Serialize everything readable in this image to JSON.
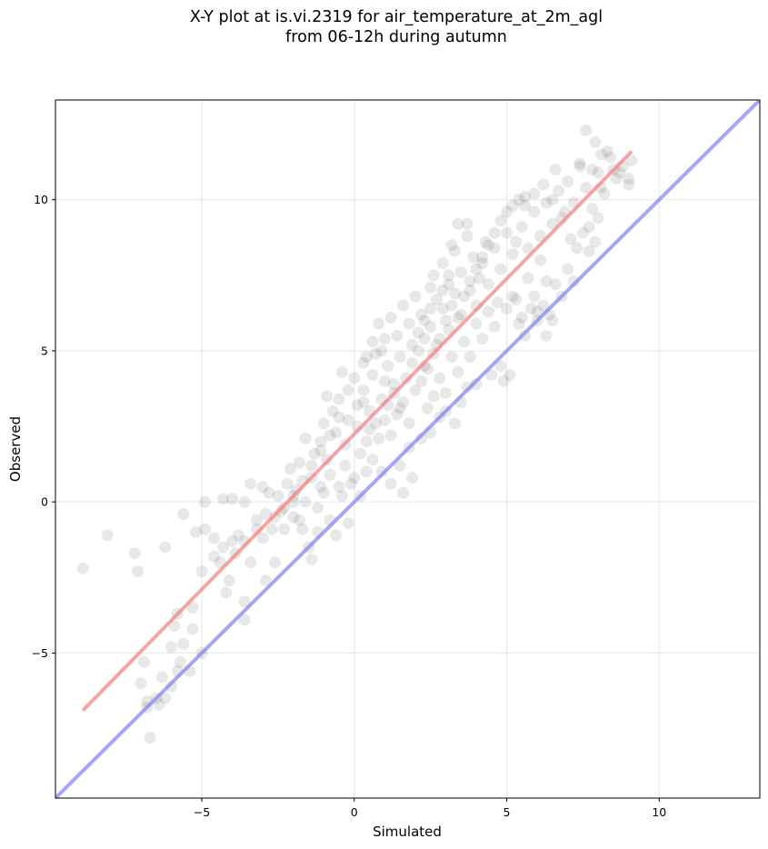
{
  "chart_data": {
    "type": "scatter",
    "title_line1": "X-Y plot at is.vi.2319 for air_temperature_at_2m_agl",
    "title_line2": "from 06-12h during autumn",
    "xlabel": "Simulated",
    "ylabel": "Observed",
    "xlim": [
      -9.8,
      13.3
    ],
    "ylim": [
      -9.8,
      13.3
    ],
    "xticks": [
      -5,
      0,
      5,
      10
    ],
    "yticks": [
      -5,
      0,
      5,
      10
    ],
    "xtick_labels": [
      "−5",
      "0",
      "5",
      "10"
    ],
    "ytick_labels": [
      "−5",
      "0",
      "5",
      "10"
    ],
    "grid": true,
    "point_color": "#000000",
    "point_opacity": 0.09,
    "fit_line": {
      "color": "#f08080",
      "x": [
        -8.9,
        9.1
      ],
      "y": [
        -6.9,
        11.6
      ]
    },
    "identity_line": {
      "color": "#8080f0",
      "x": [
        -9.8,
        13.3
      ],
      "y": [
        -9.8,
        13.3
      ]
    },
    "points": [
      [
        -8.9,
        -2.2
      ],
      [
        -8.1,
        -1.1
      ],
      [
        -7.2,
        -1.7
      ],
      [
        -7.1,
        -2.3
      ],
      [
        -6.2,
        -1.5
      ],
      [
        -5.6,
        -0.4
      ],
      [
        -5.2,
        -1.0
      ],
      [
        -4.9,
        0.0
      ],
      [
        -4.9,
        -0.9
      ],
      [
        -4.3,
        0.1
      ],
      [
        -4.0,
        0.1
      ],
      [
        -3.6,
        0.0
      ],
      [
        -3.6,
        -1.3
      ],
      [
        -3.4,
        0.6
      ],
      [
        -3.0,
        0.5
      ],
      [
        -2.8,
        0.3
      ],
      [
        -3.9,
        -1.7
      ],
      [
        -4.2,
        -3.0
      ],
      [
        -3.6,
        -3.3
      ],
      [
        -3.6,
        -3.9
      ],
      [
        -4.1,
        -2.6
      ],
      [
        -3.4,
        -2.0
      ],
      [
        -2.9,
        -2.6
      ],
      [
        -2.6,
        -2.0
      ],
      [
        -5.0,
        -2.3
      ],
      [
        -5.3,
        -3.5
      ],
      [
        -5.3,
        -4.2
      ],
      [
        -5.0,
        -5.0
      ],
      [
        -5.8,
        -3.7
      ],
      [
        -5.9,
        -4.1
      ],
      [
        -5.6,
        -4.7
      ],
      [
        -6.0,
        -4.8
      ],
      [
        -5.7,
        -5.3
      ],
      [
        -5.8,
        -5.6
      ],
      [
        -5.4,
        -5.6
      ],
      [
        -6.3,
        -5.8
      ],
      [
        -6.0,
        -6.1
      ],
      [
        -6.9,
        -5.3
      ],
      [
        -7.0,
        -6.0
      ],
      [
        -6.8,
        -6.6
      ],
      [
        -6.5,
        -6.5
      ],
      [
        -6.2,
        -6.5
      ],
      [
        -6.4,
        -6.7
      ],
      [
        -6.8,
        -6.8
      ],
      [
        -6.7,
        -7.8
      ],
      [
        -4.6,
        -1.8
      ],
      [
        -4.4,
        -2.0
      ],
      [
        -4.0,
        -1.3
      ],
      [
        -3.2,
        -0.6
      ],
      [
        -3.0,
        -1.2
      ],
      [
        -2.7,
        -0.9
      ],
      [
        -2.4,
        -0.3
      ],
      [
        -2.0,
        -0.5
      ],
      [
        -1.7,
        -0.9
      ],
      [
        -1.5,
        -1.5
      ],
      [
        -1.4,
        -1.9
      ],
      [
        -1.2,
        -1.0
      ],
      [
        -0.8,
        -0.6
      ],
      [
        -0.6,
        -1.1
      ],
      [
        -0.2,
        -0.7
      ],
      [
        -2.5,
        0.2
      ],
      [
        -2.2,
        0.6
      ],
      [
        -1.9,
        0.4
      ],
      [
        -1.6,
        0.0
      ],
      [
        -1.4,
        0.8
      ],
      [
        -1.0,
        0.3
      ],
      [
        -0.8,
        0.9
      ],
      [
        -0.5,
        0.5
      ],
      [
        -0.3,
        1.2
      ],
      [
        0.0,
        0.8
      ],
      [
        -2.1,
        1.1
      ],
      [
        -1.8,
        1.3
      ],
      [
        -1.3,
        1.6
      ],
      [
        -1.1,
        2.0
      ],
      [
        -0.9,
        1.4
      ],
      [
        -0.6,
        2.3
      ],
      [
        -0.3,
        1.9
      ],
      [
        0.1,
        2.5
      ],
      [
        0.2,
        1.6
      ],
      [
        0.4,
        2.0
      ],
      [
        -1.6,
        2.1
      ],
      [
        -1.0,
        2.6
      ],
      [
        -0.7,
        3.0
      ],
      [
        -0.5,
        3.4
      ],
      [
        -0.2,
        2.7
      ],
      [
        0.1,
        3.2
      ],
      [
        0.3,
        3.7
      ],
      [
        0.5,
        3.0
      ],
      [
        0.7,
        2.6
      ],
      [
        0.9,
        3.4
      ],
      [
        -0.9,
        3.5
      ],
      [
        -0.4,
        4.3
      ],
      [
        0.0,
        4.1
      ],
      [
        0.3,
        4.6
      ],
      [
        0.6,
        4.2
      ],
      [
        0.9,
        5.0
      ],
      [
        1.1,
        4.5
      ],
      [
        1.3,
        3.9
      ],
      [
        1.5,
        4.8
      ],
      [
        1.0,
        5.4
      ],
      [
        0.6,
        5.3
      ],
      [
        0.8,
        5.9
      ],
      [
        1.2,
        6.1
      ],
      [
        1.4,
        5.5
      ],
      [
        1.6,
        6.5
      ],
      [
        1.8,
        5.9
      ],
      [
        2.0,
        6.8
      ],
      [
        2.2,
        6.2
      ],
      [
        2.3,
        5.4
      ],
      [
        2.5,
        7.1
      ],
      [
        1.7,
        4.1
      ],
      [
        1.9,
        4.6
      ],
      [
        2.1,
        5.0
      ],
      [
        2.3,
        4.5
      ],
      [
        2.5,
        5.8
      ],
      [
        2.7,
        5.2
      ],
      [
        2.9,
        6.4
      ],
      [
        3.1,
        5.7
      ],
      [
        3.3,
        6.9
      ],
      [
        3.5,
        6.2
      ],
      [
        2.6,
        7.5
      ],
      [
        2.9,
        7.9
      ],
      [
        3.1,
        7.2
      ],
      [
        3.3,
        8.3
      ],
      [
        3.5,
        7.6
      ],
      [
        3.7,
        8.8
      ],
      [
        3.9,
        8.1
      ],
      [
        4.1,
        7.4
      ],
      [
        4.3,
        8.6
      ],
      [
        3.4,
        9.2
      ],
      [
        3.7,
        9.2
      ],
      [
        3.2,
        8.5
      ],
      [
        3.8,
        7.0
      ],
      [
        4.0,
        6.5
      ],
      [
        4.2,
        7.9
      ],
      [
        4.4,
        7.2
      ],
      [
        4.6,
        8.4
      ],
      [
        4.8,
        7.7
      ],
      [
        5.0,
        8.9
      ],
      [
        5.2,
        8.2
      ],
      [
        2.8,
        4.1
      ],
      [
        3.0,
        3.6
      ],
      [
        3.2,
        4.8
      ],
      [
        3.4,
        4.3
      ],
      [
        3.6,
        5.3
      ],
      [
        3.8,
        4.8
      ],
      [
        4.0,
        5.9
      ],
      [
        4.2,
        5.4
      ],
      [
        4.4,
        6.3
      ],
      [
        4.6,
        5.8
      ],
      [
        2.4,
        3.1
      ],
      [
        2.6,
        3.5
      ],
      [
        2.8,
        2.8
      ],
      [
        3.0,
        3.0
      ],
      [
        3.3,
        2.6
      ],
      [
        3.5,
        3.3
      ],
      [
        3.7,
        3.8
      ],
      [
        1.4,
        2.9
      ],
      [
        1.6,
        3.3
      ],
      [
        1.8,
        2.6
      ],
      [
        1.8,
        1.8
      ],
      [
        1.5,
        1.2
      ],
      [
        1.9,
        0.8
      ],
      [
        1.6,
        0.3
      ],
      [
        1.2,
        0.6
      ],
      [
        0.9,
        1.0
      ],
      [
        0.6,
        1.4
      ],
      [
        2.2,
        2.1
      ],
      [
        2.5,
        2.3
      ],
      [
        4.0,
        3.9
      ],
      [
        4.5,
        4.2
      ],
      [
        4.8,
        4.5
      ],
      [
        4.9,
        4.0
      ],
      [
        5.1,
        4.2
      ],
      [
        5.3,
        6.7
      ],
      [
        5.5,
        6.1
      ],
      [
        5.7,
        7.4
      ],
      [
        5.9,
        6.8
      ],
      [
        6.1,
        8.0
      ],
      [
        6.3,
        7.3
      ],
      [
        5.4,
        5.9
      ],
      [
        5.6,
        5.5
      ],
      [
        5.8,
        6.4
      ],
      [
        6.0,
        6.0
      ],
      [
        6.2,
        6.5
      ],
      [
        6.4,
        6.2
      ],
      [
        6.6,
        7.2
      ],
      [
        6.8,
        6.8
      ],
      [
        7.0,
        7.7
      ],
      [
        7.2,
        7.3
      ],
      [
        5.3,
        8.6
      ],
      [
        5.5,
        9.1
      ],
      [
        5.7,
        8.4
      ],
      [
        5.9,
        9.6
      ],
      [
        6.1,
        8.8
      ],
      [
        6.3,
        9.9
      ],
      [
        6.5,
        9.2
      ],
      [
        6.7,
        10.3
      ],
      [
        6.9,
        9.6
      ],
      [
        7.1,
        8.7
      ],
      [
        5.6,
        9.8
      ],
      [
        5.9,
        10.2
      ],
      [
        6.2,
        10.5
      ],
      [
        6.5,
        10.0
      ],
      [
        6.8,
        9.4
      ],
      [
        7.0,
        10.6
      ],
      [
        7.2,
        9.9
      ],
      [
        7.4,
        11.1
      ],
      [
        7.6,
        10.4
      ],
      [
        7.8,
        9.7
      ],
      [
        7.3,
        8.4
      ],
      [
        7.5,
        8.9
      ],
      [
        7.7,
        8.3
      ],
      [
        7.9,
        8.6
      ],
      [
        8.0,
        10.9
      ],
      [
        8.2,
        10.2
      ],
      [
        8.4,
        11.4
      ],
      [
        8.6,
        10.7
      ],
      [
        8.8,
        11.1
      ],
      [
        9.0,
        10.5
      ],
      [
        7.6,
        12.3
      ],
      [
        7.9,
        11.9
      ],
      [
        8.1,
        11.5
      ],
      [
        8.3,
        11.6
      ],
      [
        8.5,
        11.0
      ],
      [
        8.7,
        10.9
      ],
      [
        9.1,
        11.3
      ],
      [
        9.0,
        10.7
      ],
      [
        6.6,
        11.0
      ],
      [
        7.4,
        11.2
      ],
      [
        7.8,
        11.0
      ],
      [
        8.1,
        10.4
      ],
      [
        8.0,
        9.4
      ],
      [
        7.7,
        9.1
      ],
      [
        6.0,
        6.3
      ],
      [
        6.3,
        5.5
      ],
      [
        6.5,
        6.0
      ],
      [
        5.0,
        6.4
      ],
      [
        5.2,
        6.8
      ],
      [
        4.7,
        6.6
      ],
      [
        0.3,
        3.3
      ],
      [
        0.5,
        2.4
      ],
      [
        0.8,
        2.1
      ],
      [
        1.0,
        2.7
      ],
      [
        1.2,
        2.2
      ],
      [
        -0.1,
        0.6
      ],
      [
        0.2,
        0.2
      ],
      [
        0.4,
        1.0
      ],
      [
        -1.2,
        -0.2
      ],
      [
        -1.8,
        -0.6
      ],
      [
        -2.3,
        -0.9
      ],
      [
        -2.0,
        0.0
      ],
      [
        -2.6,
        -0.5
      ],
      [
        -1.1,
        0.5
      ],
      [
        -0.4,
        0.2
      ],
      [
        1.1,
        3.2
      ],
      [
        1.3,
        3.6
      ],
      [
        1.5,
        3.1
      ],
      [
        2.0,
        3.7
      ],
      [
        2.2,
        4.0
      ],
      [
        2.4,
        4.4
      ],
      [
        2.6,
        4.9
      ],
      [
        2.8,
        5.4
      ],
      [
        3.0,
        6.0
      ],
      [
        3.2,
        6.5
      ],
      [
        3.4,
        6.1
      ],
      [
        3.6,
        6.8
      ],
      [
        3.8,
        7.3
      ],
      [
        4.0,
        7.7
      ],
      [
        4.2,
        8.1
      ],
      [
        4.4,
        8.5
      ],
      [
        4.6,
        8.9
      ],
      [
        4.8,
        9.3
      ],
      [
        5.0,
        9.6
      ],
      [
        5.2,
        9.8
      ],
      [
        5.4,
        10.0
      ],
      [
        5.6,
        10.1
      ],
      [
        1.9,
        5.2
      ],
      [
        2.1,
        5.6
      ],
      [
        2.3,
        6.0
      ],
      [
        2.5,
        6.4
      ],
      [
        2.7,
        6.7
      ],
      [
        2.9,
        7.0
      ],
      [
        3.1,
        7.5
      ],
      [
        0.4,
        4.8
      ],
      [
        0.7,
        4.9
      ],
      [
        1.0,
        4.0
      ],
      [
        -0.2,
        3.7
      ],
      [
        -0.5,
        2.8
      ],
      [
        -0.8,
        2.2
      ],
      [
        -1.1,
        1.7
      ],
      [
        -1.4,
        1.2
      ],
      [
        -1.7,
        0.7
      ],
      [
        -2.0,
        0.2
      ],
      [
        -2.3,
        -0.2
      ],
      [
        -2.9,
        -0.4
      ],
      [
        -3.2,
        -0.9
      ],
      [
        -3.8,
        -1.1
      ],
      [
        -4.3,
        -1.5
      ],
      [
        -4.6,
        -1.2
      ]
    ]
  }
}
